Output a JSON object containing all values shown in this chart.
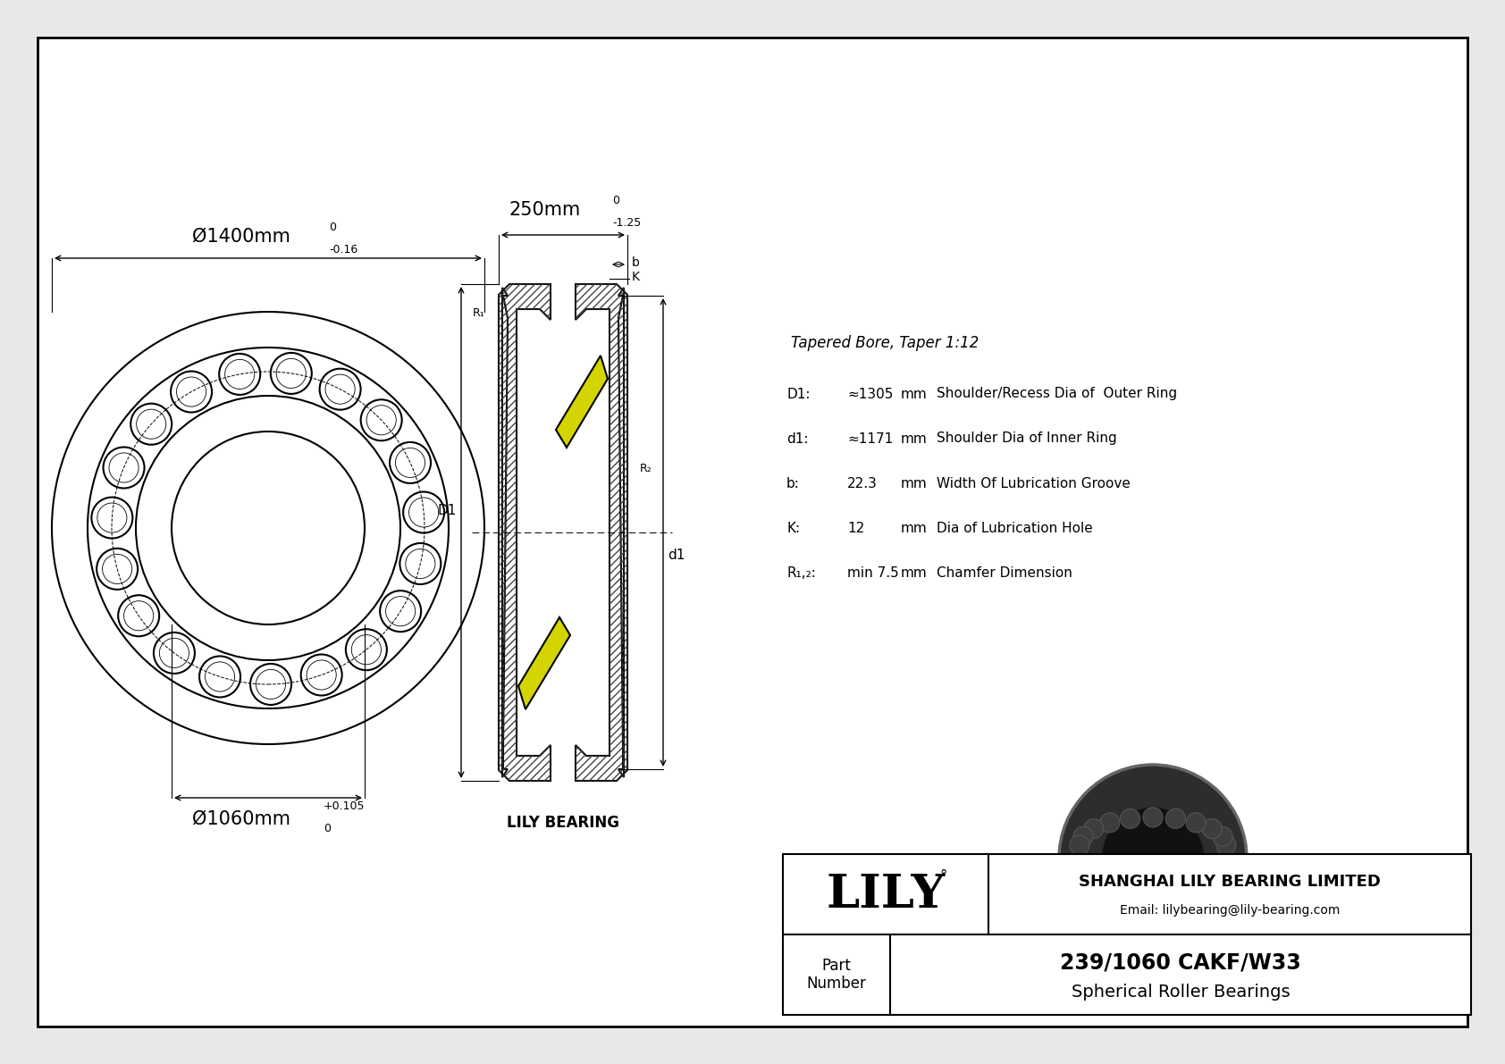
{
  "outer_diameter_label": "Ø1400mm",
  "outer_tol_top": "0",
  "outer_tol_bot": "-0.16",
  "inner_diameter_label": "Ø1060mm",
  "inner_tol_top": "+0.105",
  "inner_tol_bot": "0",
  "width_label": "250mm",
  "width_tol_top": "0",
  "width_tol_bot": "-1.25",
  "specs_title": "Tapered Bore, Taper 1:12",
  "spec_D1_label": "D1:",
  "spec_D1_val": "≈1305",
  "spec_D1_unit": "mm",
  "spec_D1_desc": "Shoulder/Recess Dia of  Outer Ring",
  "spec_d1_label": "d1:",
  "spec_d1_val": "≈1171",
  "spec_d1_unit": "mm",
  "spec_d1_desc": "Shoulder Dia of Inner Ring",
  "spec_b_label": "b:",
  "spec_b_val": "22.3",
  "spec_b_unit": "mm",
  "spec_b_desc": "Width Of Lubrication Groove",
  "spec_K_label": "K:",
  "spec_K_val": "12",
  "spec_K_unit": "mm",
  "spec_K_desc": "Dia of Lubrication Hole",
  "spec_R_label": "R₁,₂:",
  "spec_R_val": "min 7.5",
  "spec_R_unit": "mm",
  "spec_R_desc": "Chamfer Dimension",
  "company_name": "SHANGHAI LILY BEARING LIMITED",
  "company_email": "Email: lilybearing@lily-bearing.com",
  "part_label": "Part\nNumber",
  "part_number": "239/1060 CAKF/W33",
  "part_type": "Spherical Roller Bearings",
  "logo_text": "LILY",
  "watermark_text": "LILY BEARING",
  "bg_color": "#e8e8e8",
  "line_color": "#000000",
  "yellow_color": "#d4d400",
  "dark_color": "#2a2a2a"
}
